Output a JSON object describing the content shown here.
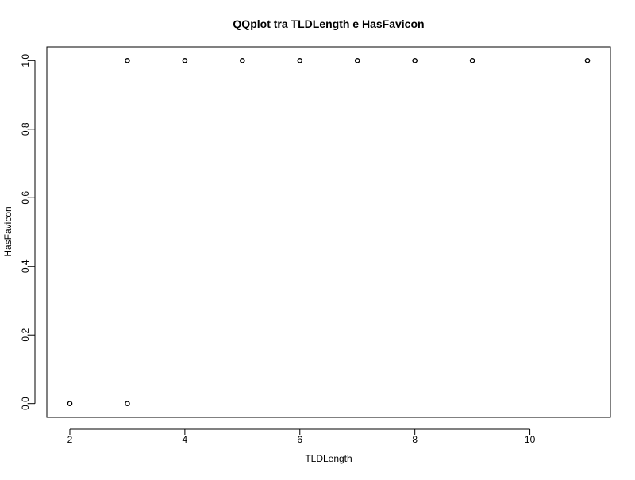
{
  "chart_data": {
    "type": "scatter",
    "title": "QQplot tra TLDLength e HasFavicon",
    "xlabel": "TLDLength",
    "ylabel": "HasFavicon",
    "xlim": [
      1.6,
      11.4
    ],
    "ylim": [
      -0.04,
      1.04
    ],
    "x_ticks": [
      2,
      4,
      6,
      8,
      10
    ],
    "x_tick_labels": [
      "2",
      "4",
      "6",
      "8",
      "10"
    ],
    "y_ticks": [
      0.0,
      0.2,
      0.4,
      0.6,
      0.8,
      1.0
    ],
    "y_tick_labels": [
      "0.0",
      "0.2",
      "0.4",
      "0.6",
      "0.8",
      "1.0"
    ],
    "grid": false,
    "marker": "open-circle",
    "points": [
      {
        "x": 2,
        "y": 0
      },
      {
        "x": 3,
        "y": 0
      },
      {
        "x": 3,
        "y": 1
      },
      {
        "x": 4,
        "y": 1
      },
      {
        "x": 5,
        "y": 1
      },
      {
        "x": 6,
        "y": 1
      },
      {
        "x": 7,
        "y": 1
      },
      {
        "x": 8,
        "y": 1
      },
      {
        "x": 9,
        "y": 1
      },
      {
        "x": 11,
        "y": 1
      }
    ]
  }
}
